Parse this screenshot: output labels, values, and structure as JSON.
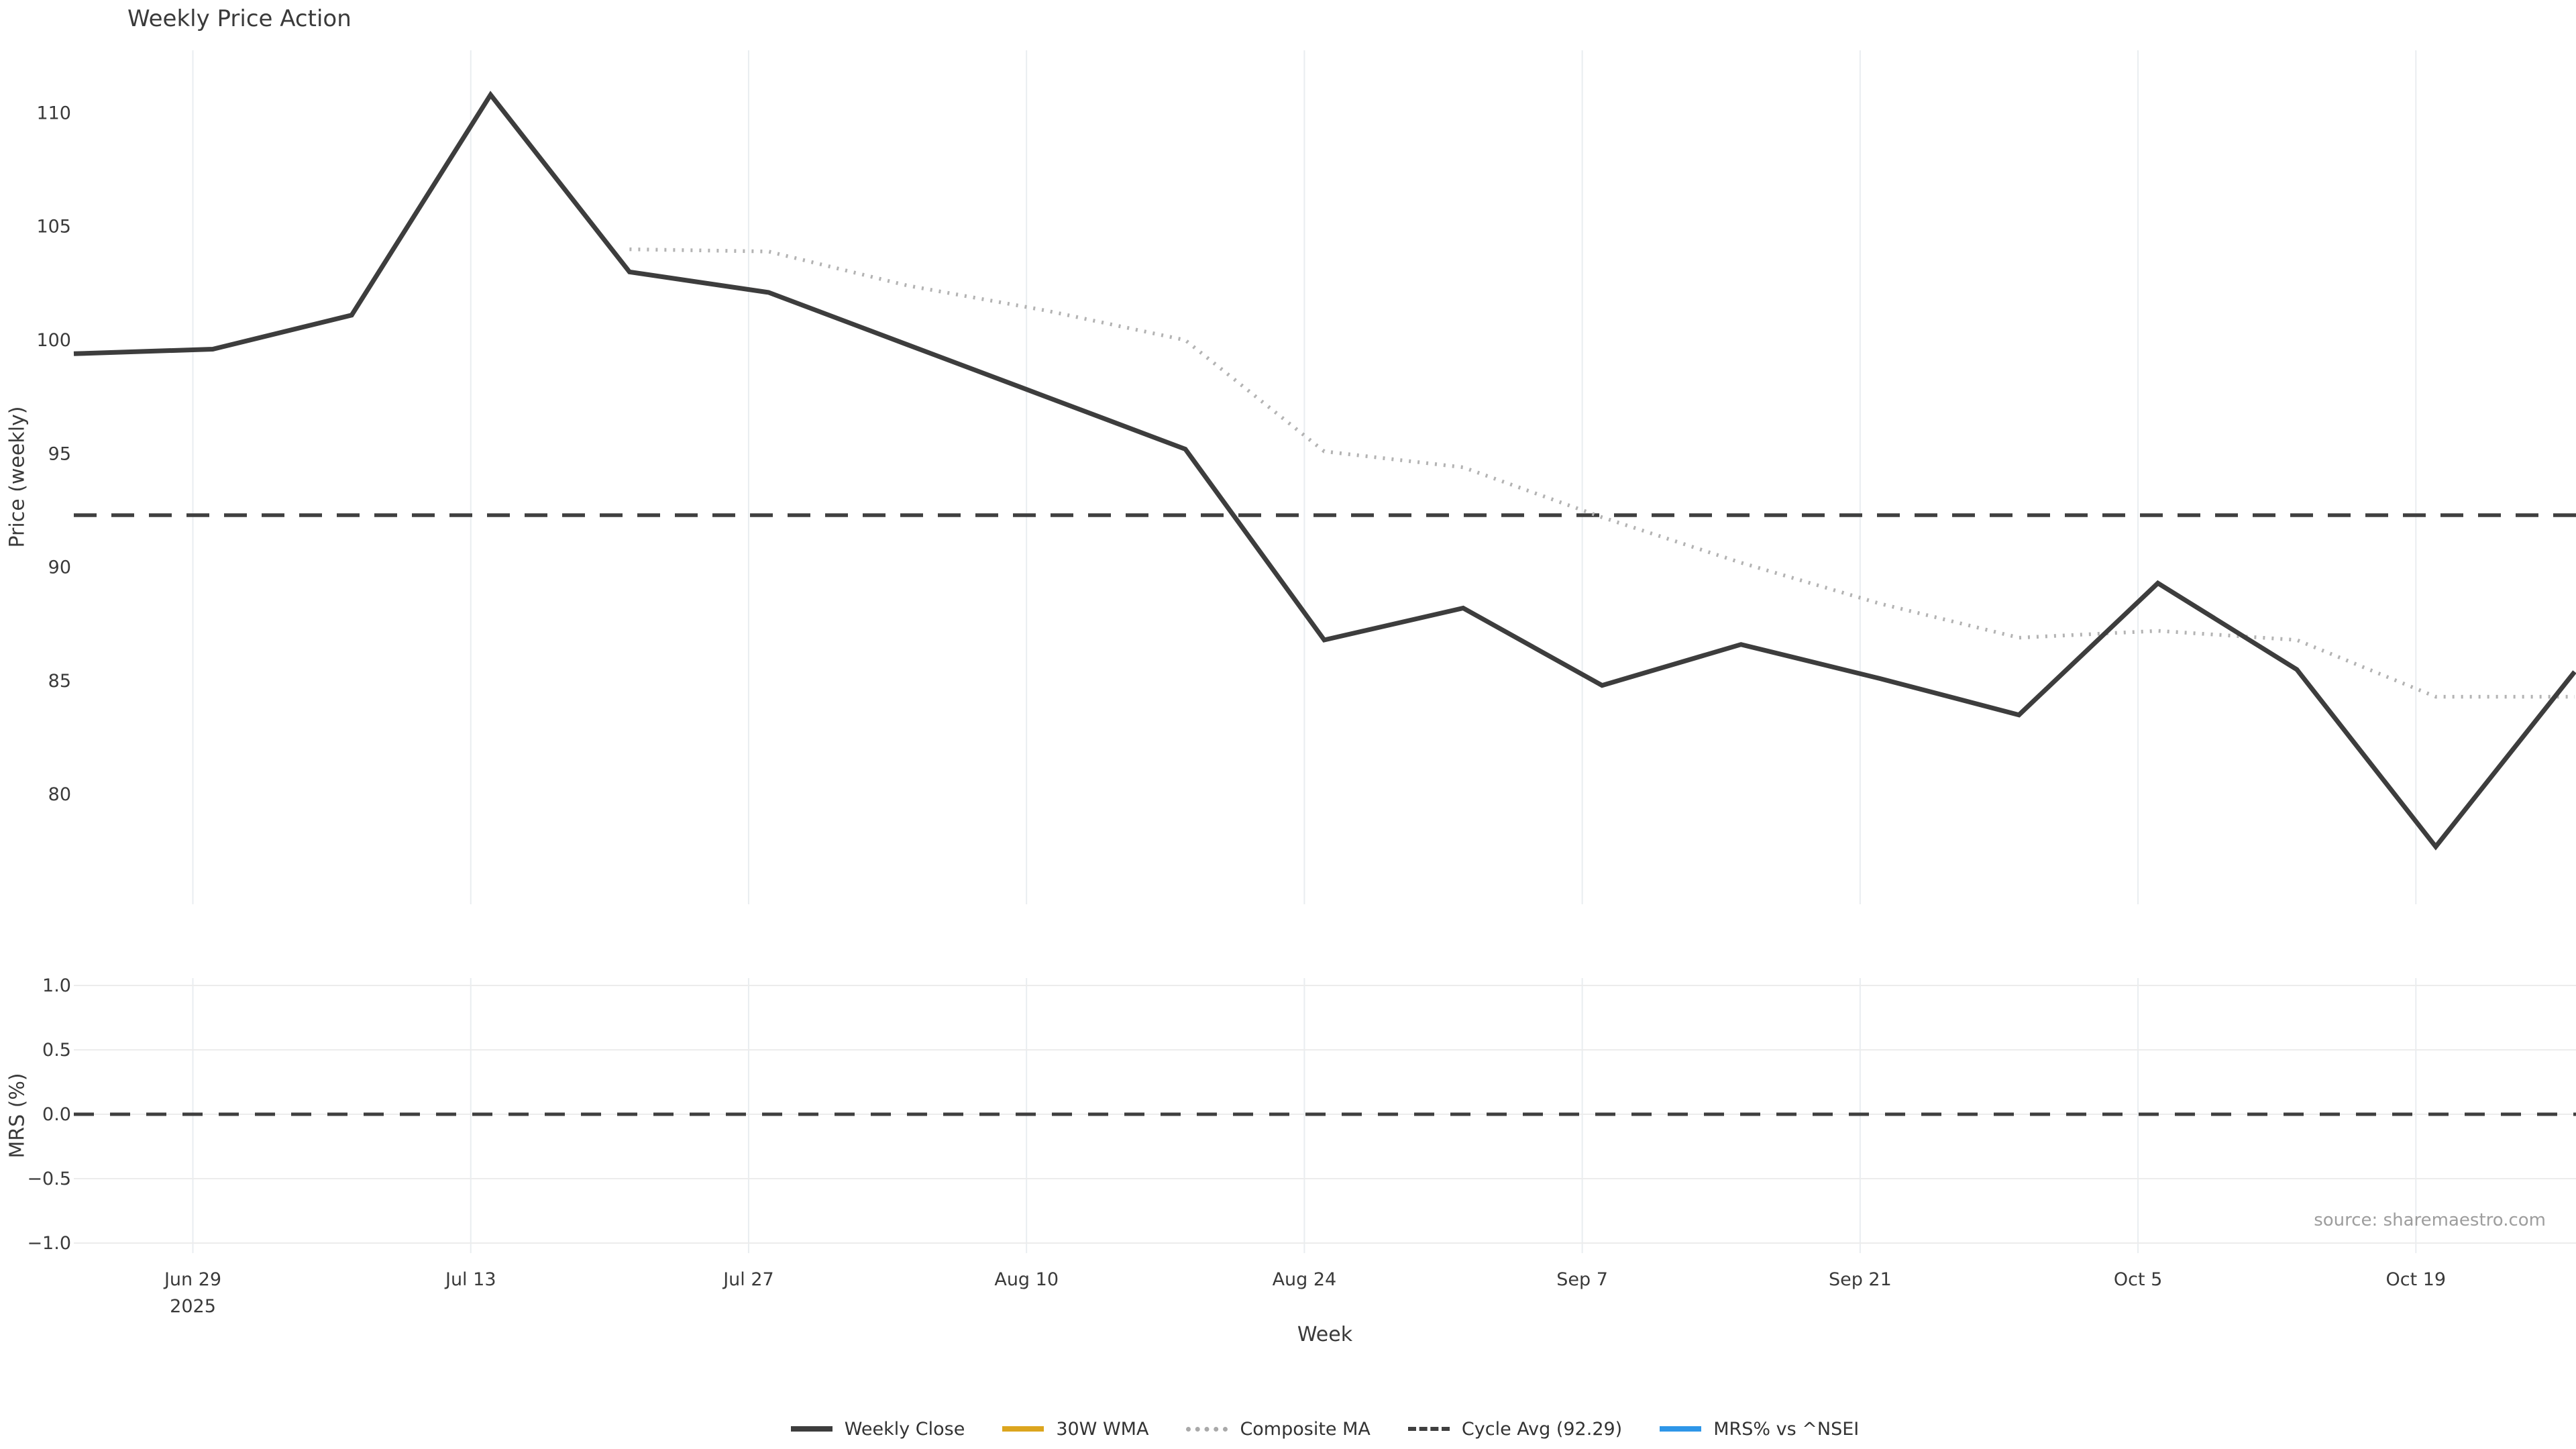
{
  "title": "Weekly Price Action",
  "source_note": "source: sharemaestro.com",
  "axes": {
    "price_axis_label": "Price (weekly)",
    "mrs_axis_label": "MRS (%)",
    "x_axis_label": "Week",
    "price_tick_labels": [
      "110",
      "105",
      "100",
      "95",
      "90",
      "85",
      "80"
    ],
    "mrs_tick_labels": [
      "1.0",
      "0.5",
      "0.0",
      "−0.5",
      "−1.0"
    ],
    "x_tick_labels": [
      "Jun 29",
      "Jul 13",
      "Jul 27",
      "Aug 10",
      "Aug 24",
      "Sep 7",
      "Sep 21",
      "Oct 5",
      "Oct 19"
    ],
    "x_first_tick_year": "2025"
  },
  "legend": {
    "items": [
      {
        "label": "Weekly Close",
        "color": "#3d3d3d",
        "style": "solid"
      },
      {
        "label": "30W WMA",
        "color": "#dca51e",
        "style": "solid"
      },
      {
        "label": "Composite MA",
        "color": "#a9a9a9",
        "style": "dotted"
      },
      {
        "label": "Cycle Avg (92.29)",
        "color": "#3f3f3f",
        "style": "dashed"
      },
      {
        "label": "MRS% vs ^NSEI",
        "color": "#2e96e8",
        "style": "solid"
      }
    ]
  },
  "colors": {
    "weekly_close": "#3d3d3d",
    "wma_30w": "#dca51e",
    "composite_ma": "#b3b3b3",
    "cycle_avg": "#3f3f3f",
    "mrs_line": "#2e96e8",
    "gridline_vertical": "#e9edf0",
    "gridline_horizontal": "#ececec",
    "tick_text": "#3a3a3a",
    "source_text": "#9d9d9d"
  },
  "chart_data": {
    "type": "line",
    "xlabel": "Week",
    "x_categories": [
      "Jun 23",
      "Jun 30",
      "Jul 7",
      "Jul 14",
      "Jul 21",
      "Jul 28",
      "Aug 4",
      "Aug 11",
      "Aug 18",
      "Aug 25",
      "Sep 1",
      "Sep 8",
      "Sep 15",
      "Sep 22",
      "Sep 29",
      "Oct 6",
      "Oct 13",
      "Oct 20",
      "Oct 27"
    ],
    "x_tick_labels": [
      "Jun 29",
      "Jul 13",
      "Jul 27",
      "Aug 10",
      "Aug 24",
      "Sep 7",
      "Sep 21",
      "Oct 5",
      "Oct 19"
    ],
    "panels": [
      {
        "name": "price",
        "ylabel": "Price (weekly)",
        "ylim": [
          75.2,
          112.8
        ],
        "yticks": [
          110,
          105,
          100,
          95,
          90,
          85,
          80
        ],
        "grid": "vertical-only",
        "series": [
          {
            "name": "Weekly Close",
            "style": "solid",
            "color": "#3d3d3d",
            "values": [
              99.4,
              99.6,
              101.1,
              110.8,
              103.0,
              102.1,
              99.8,
              97.5,
              95.2,
              86.8,
              88.2,
              84.8,
              86.6,
              85.1,
              83.5,
              89.3,
              85.5,
              77.7,
              85.4
            ]
          },
          {
            "name": "Composite MA",
            "style": "dotted",
            "color": "#b3b3b3",
            "values": [
              null,
              null,
              null,
              null,
              104.0,
              103.9,
              102.4,
              101.3,
              100.0,
              95.1,
              94.4,
              92.2,
              90.2,
              88.4,
              86.9,
              87.2,
              86.8,
              84.3,
              84.3
            ]
          },
          {
            "name": "Cycle Avg (92.29)",
            "style": "dashed",
            "color": "#3f3f3f",
            "constant": 92.29
          },
          {
            "name": "30W WMA",
            "style": "solid",
            "color": "#dca51e",
            "visible_in_plot": false
          }
        ]
      },
      {
        "name": "mrs",
        "ylabel": "MRS (%)",
        "ylim": [
          -1.05,
          1.05
        ],
        "yticks": [
          1.0,
          0.5,
          0.0,
          -0.5,
          -1.0
        ],
        "grid": "horizontal-and-vertical",
        "zero_line": 0.0,
        "series": [
          {
            "name": "MRS% vs ^NSEI",
            "style": "solid",
            "color": "#2e96e8",
            "visible_in_plot": false
          }
        ]
      }
    ]
  }
}
